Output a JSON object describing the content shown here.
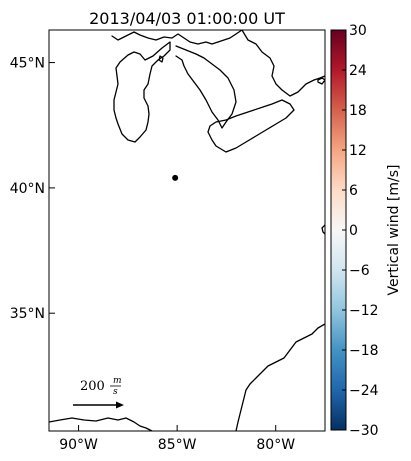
{
  "title": "2013/04/03 01:00:00 UT",
  "map": {
    "lon_range": [
      -91.5,
      -77.5
    ],
    "lat_range": [
      30.3,
      46.3
    ],
    "lon_ticks": [
      {
        "value": -90,
        "label": "90°W"
      },
      {
        "value": -85,
        "label": "85°W"
      },
      {
        "value": -80,
        "label": "80°W"
      }
    ],
    "lat_ticks": [
      {
        "value": 45,
        "label": "45°N"
      },
      {
        "value": 40,
        "label": "40°N"
      },
      {
        "value": 35,
        "label": "35°N"
      }
    ],
    "station": {
      "lon": -85.1,
      "lat": 40.4,
      "color": "#000000"
    },
    "coastline_color": "#000000"
  },
  "scale_vector": {
    "value": "200",
    "unit_top": "m",
    "unit_bottom": "s"
  },
  "colorbar": {
    "label": "Vertical wind [m/s]",
    "range": [
      -30,
      30
    ],
    "colormap": "RdBu_r",
    "color_low": "#053061",
    "color_mid": "#f7f7f7",
    "color_high": "#67001f",
    "ticks": [
      {
        "value": 30,
        "label": "30"
      },
      {
        "value": 24,
        "label": "24"
      },
      {
        "value": 18,
        "label": "18"
      },
      {
        "value": 12,
        "label": "12"
      },
      {
        "value": 6,
        "label": "6"
      },
      {
        "value": 0,
        "label": "0"
      },
      {
        "value": -6,
        "label": "−6"
      },
      {
        "value": -12,
        "label": "−12"
      },
      {
        "value": -18,
        "label": "−18"
      },
      {
        "value": -24,
        "label": "−24"
      },
      {
        "value": -30,
        "label": "−30"
      }
    ]
  }
}
